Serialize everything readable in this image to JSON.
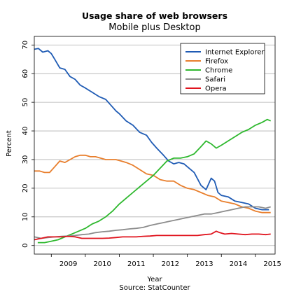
{
  "chart_data": {
    "type": "line",
    "title": "Usage share of web browsers",
    "subtitle": "Mobile plus Desktop",
    "xlabel": "Year",
    "ylabel": "Percent",
    "source": "Source: StatCounter",
    "xlim": [
      2008.5,
      2015.58
    ],
    "ylim": [
      -3,
      73
    ],
    "x_ticks": [
      "2009",
      "2010",
      "2011",
      "2012",
      "2013",
      "2014",
      "2015"
    ],
    "y_ticks": [
      "0",
      "10",
      "20",
      "30",
      "40",
      "50",
      "60",
      "70"
    ],
    "grid": "horizontal",
    "legend_position": "top-right",
    "series": [
      {
        "name": "Internet Explorer",
        "color": "#1f5bb4",
        "x": [
          2008.5,
          2008.62,
          2008.75,
          2008.9,
          2009.0,
          2009.1,
          2009.25,
          2009.4,
          2009.55,
          2009.7,
          2009.85,
          2010.0,
          2010.2,
          2010.4,
          2010.6,
          2010.75,
          2010.9,
          2011.0,
          2011.2,
          2011.4,
          2011.6,
          2011.8,
          2011.95,
          2012.1,
          2012.3,
          2012.45,
          2012.6,
          2012.75,
          2012.9,
          2013.0,
          2013.2,
          2013.4,
          2013.55,
          2013.7,
          2013.8,
          2013.9,
          2014.0,
          2014.2,
          2014.4,
          2014.6,
          2014.8,
          2015.0,
          2015.2,
          2015.4
        ],
        "values": [
          68.5,
          68.8,
          67.5,
          68.0,
          67.0,
          65.0,
          62.0,
          61.5,
          59.0,
          58.0,
          56.0,
          55.0,
          53.5,
          52.0,
          51.0,
          49.0,
          47.0,
          46.0,
          43.5,
          42.0,
          39.5,
          38.5,
          36.0,
          34.0,
          31.5,
          29.5,
          28.5,
          29.0,
          28.5,
          27.5,
          25.5,
          21.0,
          19.5,
          23.5,
          22.5,
          18.5,
          17.5,
          17.0,
          15.5,
          15.0,
          14.5,
          13.0,
          12.5,
          12.5
        ]
      },
      {
        "name": "Firefox",
        "color": "#e87e2c",
        "x": [
          2008.5,
          2008.65,
          2008.8,
          2008.95,
          2009.1,
          2009.25,
          2009.4,
          2009.55,
          2009.7,
          2009.85,
          2010.0,
          2010.15,
          2010.3,
          2010.45,
          2010.6,
          2010.75,
          2010.9,
          2011.05,
          2011.2,
          2011.4,
          2011.6,
          2011.8,
          2012.0,
          2012.2,
          2012.4,
          2012.6,
          2012.8,
          2013.0,
          2013.2,
          2013.4,
          2013.6,
          2013.8,
          2014.0,
          2014.2,
          2014.4,
          2014.6,
          2014.8,
          2015.0,
          2015.2,
          2015.45
        ],
        "values": [
          26.0,
          26.0,
          25.5,
          25.5,
          27.5,
          29.5,
          29.0,
          30.0,
          31.0,
          31.5,
          31.5,
          31.0,
          31.0,
          30.5,
          30.0,
          30.0,
          30.0,
          29.5,
          29.0,
          28.0,
          26.5,
          25.0,
          24.5,
          23.0,
          22.5,
          22.5,
          21.0,
          20.0,
          19.5,
          18.5,
          17.5,
          17.0,
          15.5,
          15.0,
          14.5,
          13.5,
          13.0,
          12.0,
          11.5,
          11.5
        ]
      },
      {
        "name": "Chrome",
        "color": "#2eb82e",
        "x": [
          2008.6,
          2008.8,
          2009.0,
          2009.2,
          2009.4,
          2009.6,
          2009.8,
          2010.0,
          2010.2,
          2010.4,
          2010.6,
          2010.8,
          2011.0,
          2011.2,
          2011.4,
          2011.6,
          2011.8,
          2012.0,
          2012.2,
          2012.4,
          2012.6,
          2012.8,
          2013.0,
          2013.2,
          2013.4,
          2013.55,
          2013.7,
          2013.85,
          2014.0,
          2014.2,
          2014.4,
          2014.6,
          2014.8,
          2015.0,
          2015.2,
          2015.35,
          2015.45
        ],
        "values": [
          1.0,
          1.0,
          1.5,
          2.0,
          3.0,
          4.0,
          5.0,
          6.0,
          7.5,
          8.5,
          10.0,
          12.0,
          14.5,
          16.5,
          18.5,
          20.5,
          22.5,
          24.5,
          27.0,
          29.5,
          30.5,
          30.5,
          31.0,
          32.0,
          34.5,
          36.5,
          35.5,
          34.0,
          35.0,
          36.5,
          38.0,
          39.5,
          40.5,
          42.0,
          43.0,
          44.0,
          43.5
        ]
      },
      {
        "name": "Safari",
        "color": "#8c8c8c",
        "x": [
          2008.5,
          2008.7,
          2008.9,
          2009.1,
          2009.3,
          2009.5,
          2009.7,
          2009.9,
          2010.1,
          2010.3,
          2010.5,
          2010.7,
          2010.9,
          2011.1,
          2011.3,
          2011.5,
          2011.7,
          2011.9,
          2012.1,
          2012.3,
          2012.5,
          2012.7,
          2012.9,
          2013.1,
          2013.3,
          2013.5,
          2013.7,
          2013.9,
          2014.1,
          2014.3,
          2014.5,
          2014.7,
          2014.9,
          2015.1,
          2015.3,
          2015.45
        ],
        "values": [
          3.0,
          2.5,
          2.8,
          3.0,
          3.2,
          3.3,
          3.5,
          3.8,
          4.0,
          4.5,
          4.8,
          5.0,
          5.3,
          5.5,
          5.8,
          6.0,
          6.3,
          7.0,
          7.5,
          8.0,
          8.5,
          9.0,
          9.5,
          10.0,
          10.5,
          11.0,
          11.0,
          11.5,
          12.0,
          12.5,
          13.0,
          13.5,
          13.5,
          13.5,
          13.0,
          13.5
        ]
      },
      {
        "name": "Opera",
        "color": "#e0141e",
        "x": [
          2008.5,
          2008.7,
          2008.9,
          2009.1,
          2009.3,
          2009.5,
          2009.7,
          2009.9,
          2010.1,
          2010.3,
          2010.5,
          2010.7,
          2010.9,
          2011.1,
          2011.3,
          2011.5,
          2011.7,
          2011.9,
          2012.1,
          2012.3,
          2012.5,
          2012.7,
          2012.9,
          2013.1,
          2013.3,
          2013.5,
          2013.7,
          2013.85,
          2013.95,
          2014.1,
          2014.3,
          2014.5,
          2014.7,
          2014.9,
          2015.1,
          2015.3,
          2015.45
        ],
        "values": [
          2.0,
          2.5,
          3.0,
          3.0,
          3.0,
          3.2,
          3.0,
          2.5,
          2.5,
          2.5,
          2.5,
          2.6,
          2.8,
          3.0,
          3.0,
          3.0,
          3.2,
          3.3,
          3.5,
          3.5,
          3.5,
          3.5,
          3.5,
          3.5,
          3.5,
          3.8,
          4.0,
          5.0,
          4.5,
          4.0,
          4.2,
          4.0,
          3.8,
          4.0,
          4.0,
          3.8,
          4.0
        ]
      }
    ]
  }
}
